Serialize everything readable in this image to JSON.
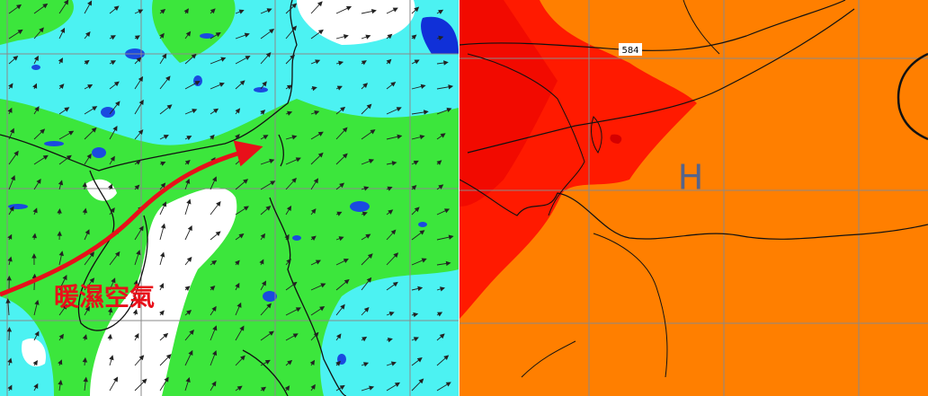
{
  "left_panel": {
    "annotation": "暖濕空氣"
  },
  "right_panel": {
    "contour_label": "584",
    "high_pressure_label": "H"
  }
}
